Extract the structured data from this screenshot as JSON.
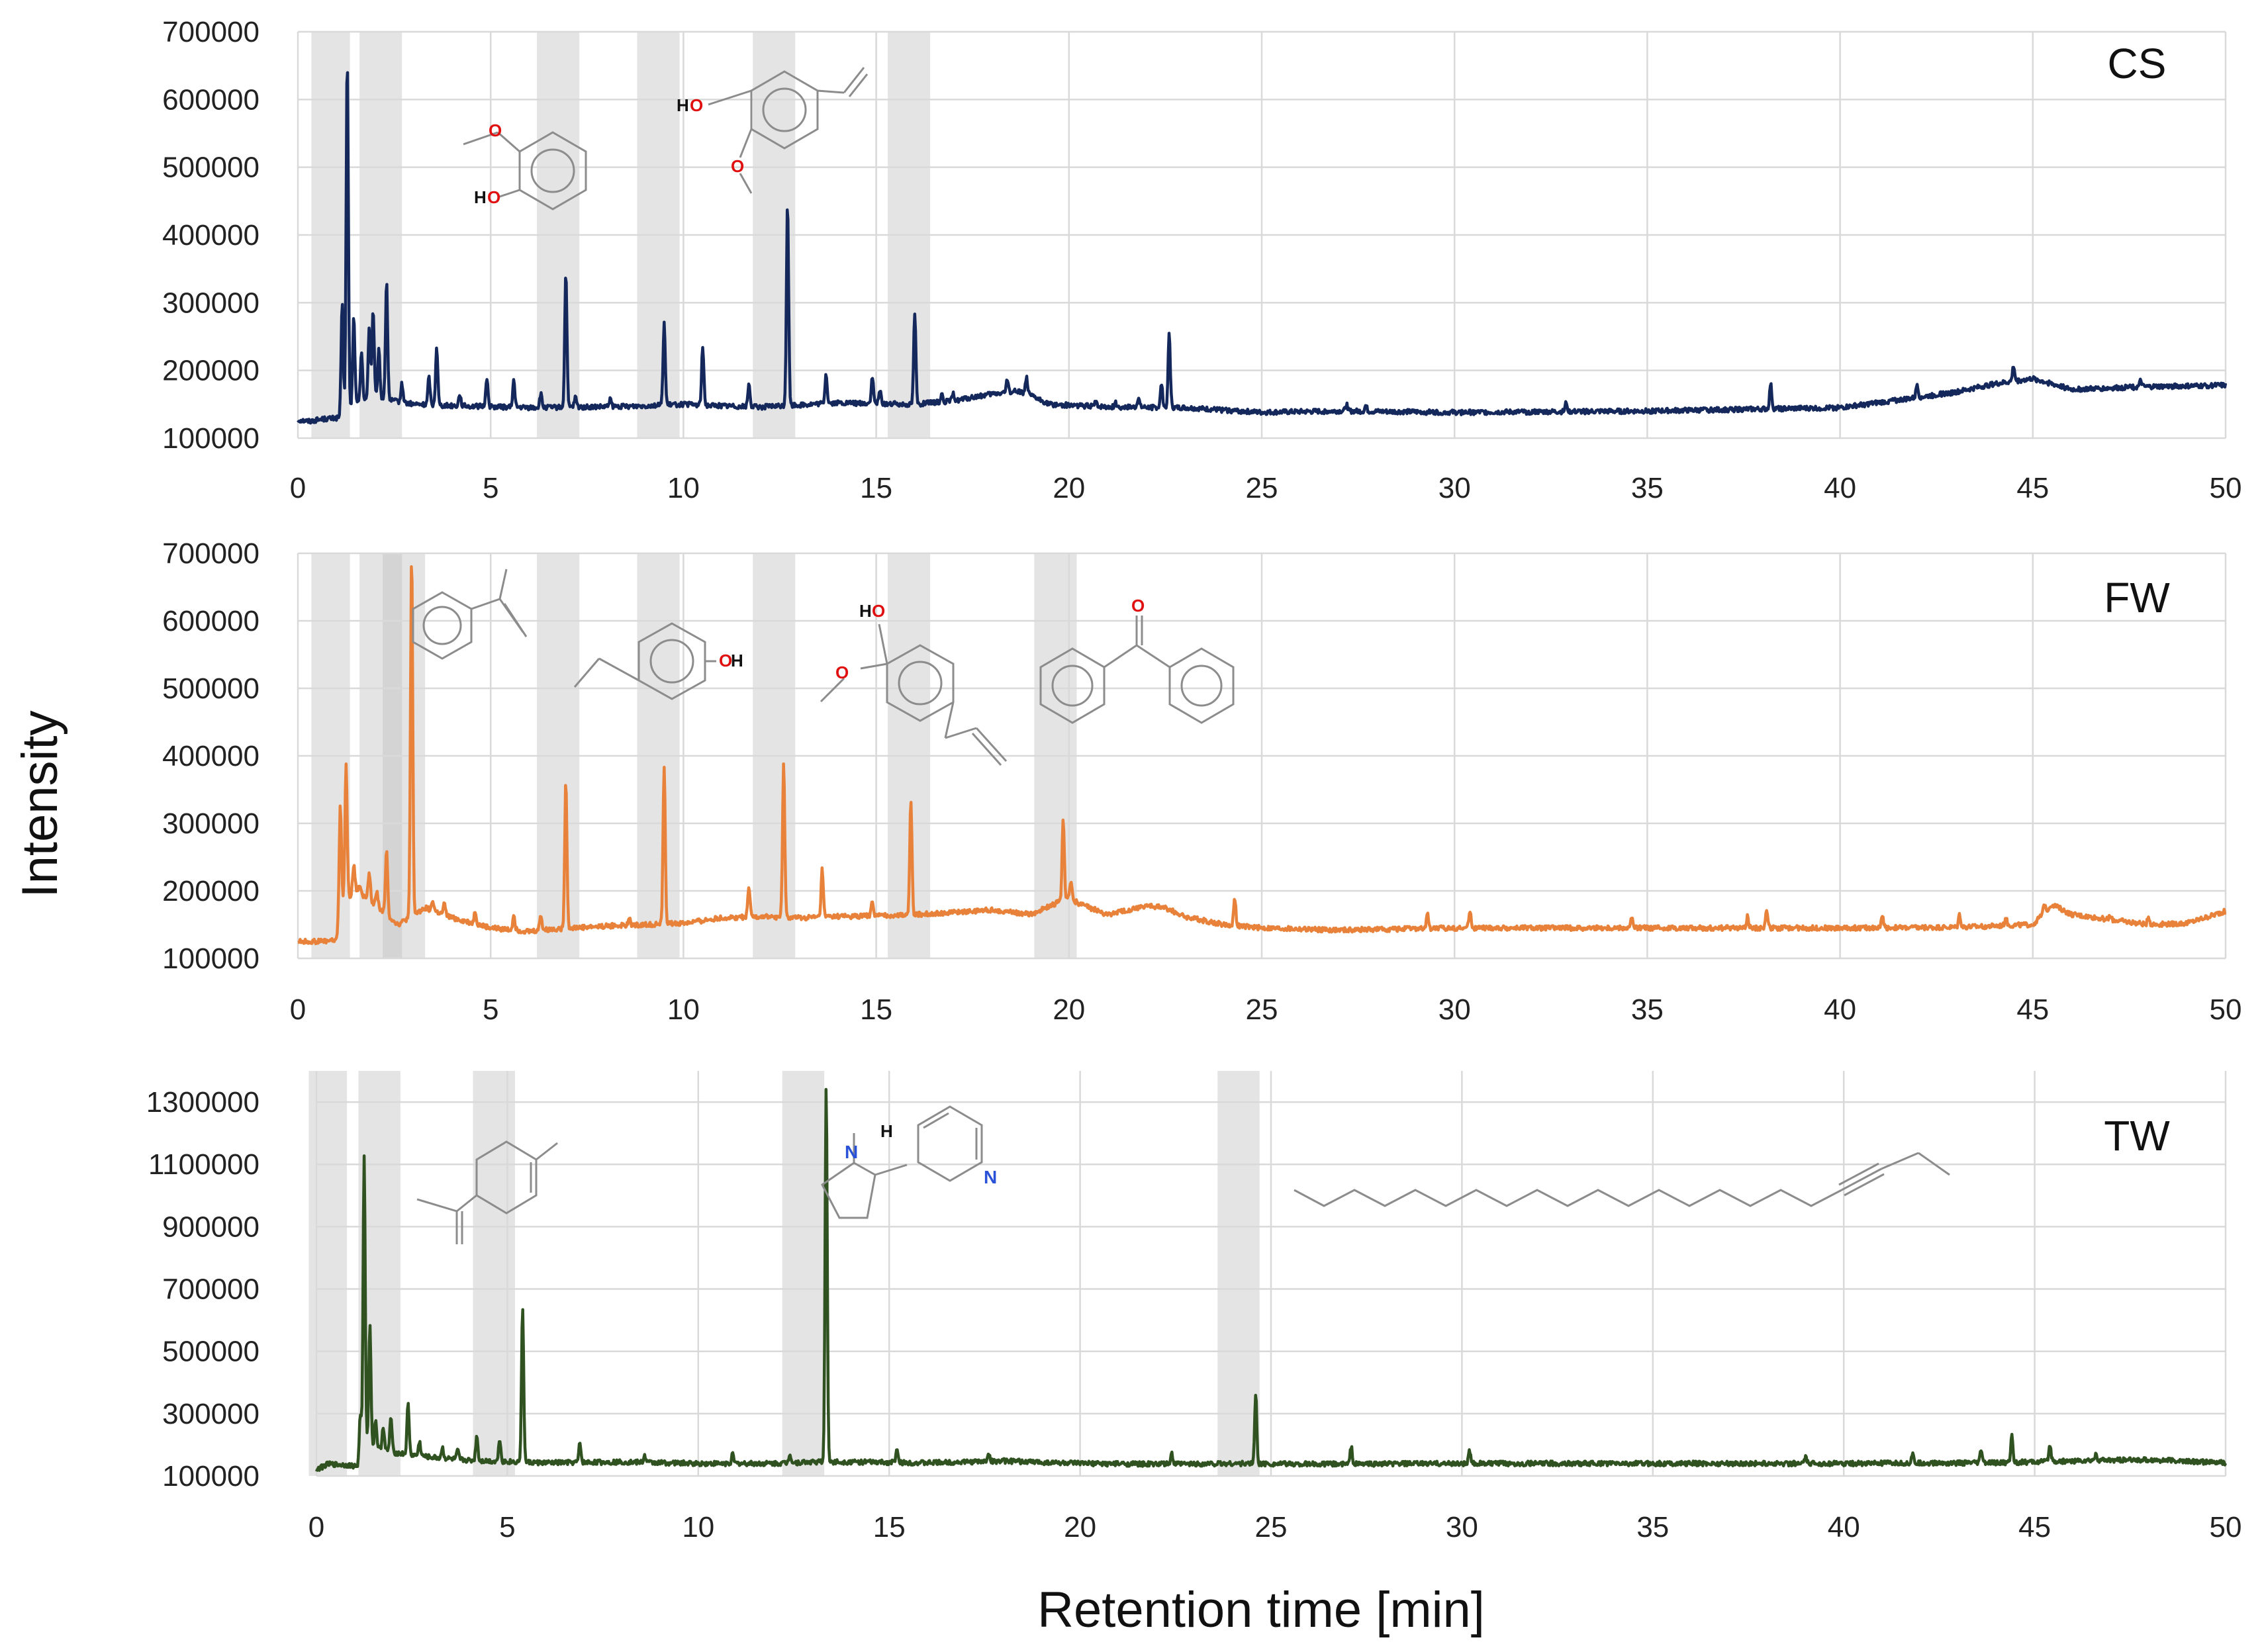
{
  "figure": {
    "ylabel": "Intensity",
    "xlabel": "Retention time [min]"
  },
  "colors": {
    "CS": "#14285c",
    "FW": "#e8823a",
    "TW": "#2f5220",
    "highlight": "#bfbfbf",
    "grid": "#d9d9d9"
  },
  "chart_data": [
    {
      "type": "line",
      "name": "CS",
      "xlim": [
        0,
        50
      ],
      "ylim": [
        100000,
        700000
      ],
      "x_ticks": [
        "0",
        "5",
        "10",
        "15",
        "20",
        "25",
        "30",
        "35",
        "40",
        "45",
        "50"
      ],
      "y_ticks": [
        "100000",
        "200000",
        "300000",
        "400000",
        "500000",
        "600000",
        "700000"
      ],
      "highlight_bands_min": [
        [
          0.35,
          1.35
        ],
        [
          1.6,
          2.7
        ],
        [
          6.2,
          7.3
        ],
        [
          8.8,
          9.9
        ],
        [
          11.8,
          12.9
        ],
        [
          15.3,
          16.4
        ]
      ],
      "baseline": [
        [
          0,
          127000
        ],
        [
          0.3,
          125000
        ],
        [
          0.6,
          128000
        ],
        [
          1.1,
          130000
        ],
        [
          1.5,
          150000
        ],
        [
          2,
          160000
        ],
        [
          3,
          150000
        ],
        [
          4,
          148000
        ],
        [
          6,
          145000
        ],
        [
          8,
          146000
        ],
        [
          10,
          150000
        ],
        [
          12,
          146000
        ],
        [
          14,
          152000
        ],
        [
          16,
          150000
        ],
        [
          17,
          155000
        ],
        [
          18,
          165000
        ],
        [
          18.7,
          170000
        ],
        [
          19.5,
          150000
        ],
        [
          21,
          146000
        ],
        [
          23,
          145000
        ],
        [
          25,
          138000
        ],
        [
          27,
          140000
        ],
        [
          30,
          138000
        ],
        [
          35,
          140000
        ],
        [
          38,
          143000
        ],
        [
          40,
          145000
        ],
        [
          42,
          160000
        ],
        [
          43,
          168000
        ],
        [
          44,
          180000
        ],
        [
          45,
          188000
        ],
        [
          46,
          172000
        ],
        [
          48,
          176000
        ],
        [
          50,
          178000
        ]
      ],
      "peaks": [
        [
          1.15,
          300000
        ],
        [
          1.28,
          660000
        ],
        [
          1.45,
          280000
        ],
        [
          1.65,
          230000
        ],
        [
          1.85,
          265000
        ],
        [
          1.95,
          290000
        ],
        [
          2.1,
          230000
        ],
        [
          2.3,
          330000
        ],
        [
          2.7,
          180000
        ],
        [
          3.4,
          190000
        ],
        [
          3.6,
          235000
        ],
        [
          4.2,
          165000
        ],
        [
          4.9,
          190000
        ],
        [
          5.6,
          185000
        ],
        [
          6.3,
          165000
        ],
        [
          6.95,
          345000
        ],
        [
          7.2,
          160000
        ],
        [
          8.1,
          158000
        ],
        [
          9.5,
          270000
        ],
        [
          10.5,
          235000
        ],
        [
          11.7,
          180000
        ],
        [
          12.7,
          450000
        ],
        [
          13.7,
          195000
        ],
        [
          14.9,
          190000
        ],
        [
          15.1,
          170000
        ],
        [
          16.0,
          285000
        ],
        [
          16.7,
          165000
        ],
        [
          17.0,
          165000
        ],
        [
          18.4,
          185000
        ],
        [
          18.9,
          190000
        ],
        [
          20.7,
          155000
        ],
        [
          21.2,
          152000
        ],
        [
          21.8,
          160000
        ],
        [
          22.4,
          180000
        ],
        [
          22.6,
          255000
        ],
        [
          27.2,
          150000
        ],
        [
          27.7,
          148000
        ],
        [
          32.9,
          153000
        ],
        [
          38.2,
          180000
        ],
        [
          42.0,
          180000
        ],
        [
          44.5,
          207000
        ],
        [
          47.8,
          185000
        ]
      ]
    },
    {
      "type": "line",
      "name": "FW",
      "xlim": [
        0,
        50
      ],
      "ylim": [
        100000,
        700000
      ],
      "x_ticks": [
        "0",
        "5",
        "10",
        "15",
        "20",
        "25",
        "30",
        "35",
        "40",
        "45",
        "50"
      ],
      "y_ticks": [
        "100000",
        "200000",
        "300000",
        "400000",
        "500000",
        "600000",
        "700000"
      ],
      "highlight_bands_min": [
        [
          0.35,
          1.35
        ],
        [
          1.6,
          2.7
        ],
        [
          2.2,
          3.3
        ],
        [
          6.2,
          7.3
        ],
        [
          8.8,
          9.9
        ],
        [
          11.8,
          12.9
        ],
        [
          15.3,
          16.4
        ],
        [
          19.1,
          20.2
        ]
      ],
      "baseline": [
        [
          0,
          125000
        ],
        [
          0.5,
          125000
        ],
        [
          1.0,
          127000
        ],
        [
          1.1,
          180000
        ],
        [
          1.5,
          200000
        ],
        [
          2,
          180000
        ],
        [
          2.6,
          150000
        ],
        [
          3.3,
          175000
        ],
        [
          4,
          160000
        ],
        [
          5,
          145000
        ],
        [
          6,
          140000
        ],
        [
          7,
          145000
        ],
        [
          8,
          148000
        ],
        [
          9,
          150000
        ],
        [
          10,
          152000
        ],
        [
          11,
          160000
        ],
        [
          12,
          162000
        ],
        [
          13,
          160000
        ],
        [
          14,
          162000
        ],
        [
          15,
          163000
        ],
        [
          16,
          165000
        ],
        [
          17,
          168000
        ],
        [
          18,
          172000
        ],
        [
          19,
          165000
        ],
        [
          19.6,
          180000
        ],
        [
          20,
          190000
        ],
        [
          20.3,
          180000
        ],
        [
          21,
          165000
        ],
        [
          22,
          178000
        ],
        [
          22.5,
          175000
        ],
        [
          23,
          162000
        ],
        [
          24,
          150000
        ],
        [
          25,
          145000
        ],
        [
          27,
          142000
        ],
        [
          30,
          145000
        ],
        [
          33,
          145000
        ],
        [
          36,
          145000
        ],
        [
          40,
          145000
        ],
        [
          43,
          146000
        ],
        [
          45,
          150000
        ],
        [
          45.5,
          180000
        ],
        [
          46,
          165000
        ],
        [
          48,
          150000
        ],
        [
          49,
          152000
        ],
        [
          50,
          170000
        ]
      ],
      "peaks": [
        [
          1.1,
          330000
        ],
        [
          1.25,
          390000
        ],
        [
          1.45,
          240000
        ],
        [
          1.6,
          210000
        ],
        [
          1.85,
          230000
        ],
        [
          2.05,
          200000
        ],
        [
          2.3,
          260000
        ],
        [
          2.95,
          700000
        ],
        [
          3.5,
          185000
        ],
        [
          3.8,
          180000
        ],
        [
          4.6,
          170000
        ],
        [
          5.6,
          165000
        ],
        [
          6.3,
          165000
        ],
        [
          6.95,
          365000
        ],
        [
          8.6,
          158000
        ],
        [
          9.5,
          385000
        ],
        [
          11.7,
          205000
        ],
        [
          12.6,
          390000
        ],
        [
          13.6,
          232000
        ],
        [
          14.9,
          185000
        ],
        [
          15.9,
          335000
        ],
        [
          19.85,
          308000
        ],
        [
          20.05,
          215000
        ],
        [
          24.3,
          190000
        ],
        [
          29.3,
          165000
        ],
        [
          30.4,
          172000
        ],
        [
          34.6,
          160000
        ],
        [
          37.6,
          163000
        ],
        [
          38.1,
          172000
        ],
        [
          41.1,
          163000
        ],
        [
          43.1,
          165000
        ],
        [
          44.3,
          160000
        ],
        [
          45.3,
          180000
        ],
        [
          47.0,
          162000
        ],
        [
          48.0,
          162000
        ],
        [
          49.8,
          158000
        ]
      ]
    },
    {
      "type": "line",
      "name": "TW",
      "xlim": [
        0,
        50
      ],
      "ylim": [
        100000,
        1400000
      ],
      "x_ticks": [
        "0",
        "5",
        "10",
        "15",
        "20",
        "25",
        "30",
        "35",
        "40",
        "45",
        "50"
      ],
      "y_ticks": [
        "100000",
        "300000",
        "500000",
        "700000",
        "900000",
        "1100000",
        "1300000"
      ],
      "highlight_bands_min": [
        [
          -0.2,
          0.8
        ],
        [
          1.1,
          2.2
        ],
        [
          4.1,
          5.2
        ],
        [
          12.2,
          13.3
        ],
        [
          23.6,
          24.7
        ]
      ],
      "baseline": [
        [
          0,
          120000
        ],
        [
          0.3,
          138000
        ],
        [
          0.8,
          135000
        ],
        [
          1.1,
          130000
        ],
        [
          1.3,
          200000
        ],
        [
          2,
          175000
        ],
        [
          3,
          160000
        ],
        [
          4,
          150000
        ],
        [
          6,
          142000
        ],
        [
          8,
          145000
        ],
        [
          10,
          140000
        ],
        [
          12,
          140000
        ],
        [
          13,
          145000
        ],
        [
          14,
          145000
        ],
        [
          16,
          142000
        ],
        [
          18,
          148000
        ],
        [
          20,
          140000
        ],
        [
          22,
          138000
        ],
        [
          24,
          140000
        ],
        [
          26,
          138000
        ],
        [
          30,
          140000
        ],
        [
          35,
          140000
        ],
        [
          40,
          140000
        ],
        [
          44,
          142000
        ],
        [
          46,
          148000
        ],
        [
          48,
          152000
        ],
        [
          50,
          142000
        ]
      ],
      "peaks": [
        [
          1.15,
          300000
        ],
        [
          1.25,
          1120000
        ],
        [
          1.4,
          590000
        ],
        [
          1.55,
          280000
        ],
        [
          1.75,
          260000
        ],
        [
          1.95,
          290000
        ],
        [
          2.4,
          330000
        ],
        [
          2.7,
          210000
        ],
        [
          3.3,
          190000
        ],
        [
          3.7,
          180000
        ],
        [
          4.2,
          230000
        ],
        [
          4.8,
          220000
        ],
        [
          5.4,
          640000
        ],
        [
          6.9,
          205000
        ],
        [
          8.6,
          165000
        ],
        [
          10.9,
          168000
        ],
        [
          12.4,
          172000
        ],
        [
          13.35,
          1350000
        ],
        [
          15.2,
          183000
        ],
        [
          17.6,
          175000
        ],
        [
          22.4,
          170000
        ],
        [
          24.6,
          365000
        ],
        [
          27.1,
          195000
        ],
        [
          30.2,
          180000
        ],
        [
          39.0,
          158000
        ],
        [
          41.8,
          170000
        ],
        [
          43.6,
          185000
        ],
        [
          44.4,
          230000
        ],
        [
          45.4,
          200000
        ],
        [
          46.6,
          172000
        ]
      ]
    }
  ]
}
